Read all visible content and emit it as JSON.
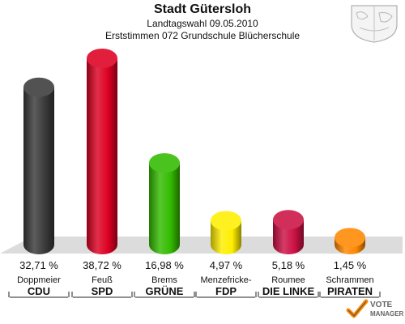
{
  "header": {
    "title": "Stadt Gütersloh",
    "subtitle_1": "Landtagswahl 09.05.2010",
    "subtitle_2": "Erststimmen 072 Grundschule Blücherschule"
  },
  "brand": {
    "line1": "VOTE",
    "line2": "MANAGER"
  },
  "chart_data": {
    "type": "bar",
    "title": "Stadt Gütersloh",
    "subtitle": "Landtagswahl 09.05.2010 / Erststimmen 072 Grundschule Blücherschule",
    "categories": [
      "CDU",
      "SPD",
      "GRÜNE",
      "FDP",
      "DIE LINKE",
      "PIRATEN"
    ],
    "candidates": [
      "Doppmeier",
      "Feuß",
      "Brems",
      "Menzefricke-",
      "Roumee",
      "Schrammen"
    ],
    "values": [
      32.71,
      38.72,
      16.98,
      4.97,
      5.18,
      1.45
    ],
    "value_labels": [
      "32,71 %",
      "38,72 %",
      "16,98 %",
      "4,97 %",
      "5,18 %",
      "1,45 %"
    ],
    "colors": [
      "#3a3a3a",
      "#dd0022",
      "#33bb00",
      "#ffee00",
      "#cc1144",
      "#ff8800"
    ],
    "unit": "%",
    "ylim": [
      0,
      40
    ],
    "grid": false,
    "legend": "none"
  }
}
